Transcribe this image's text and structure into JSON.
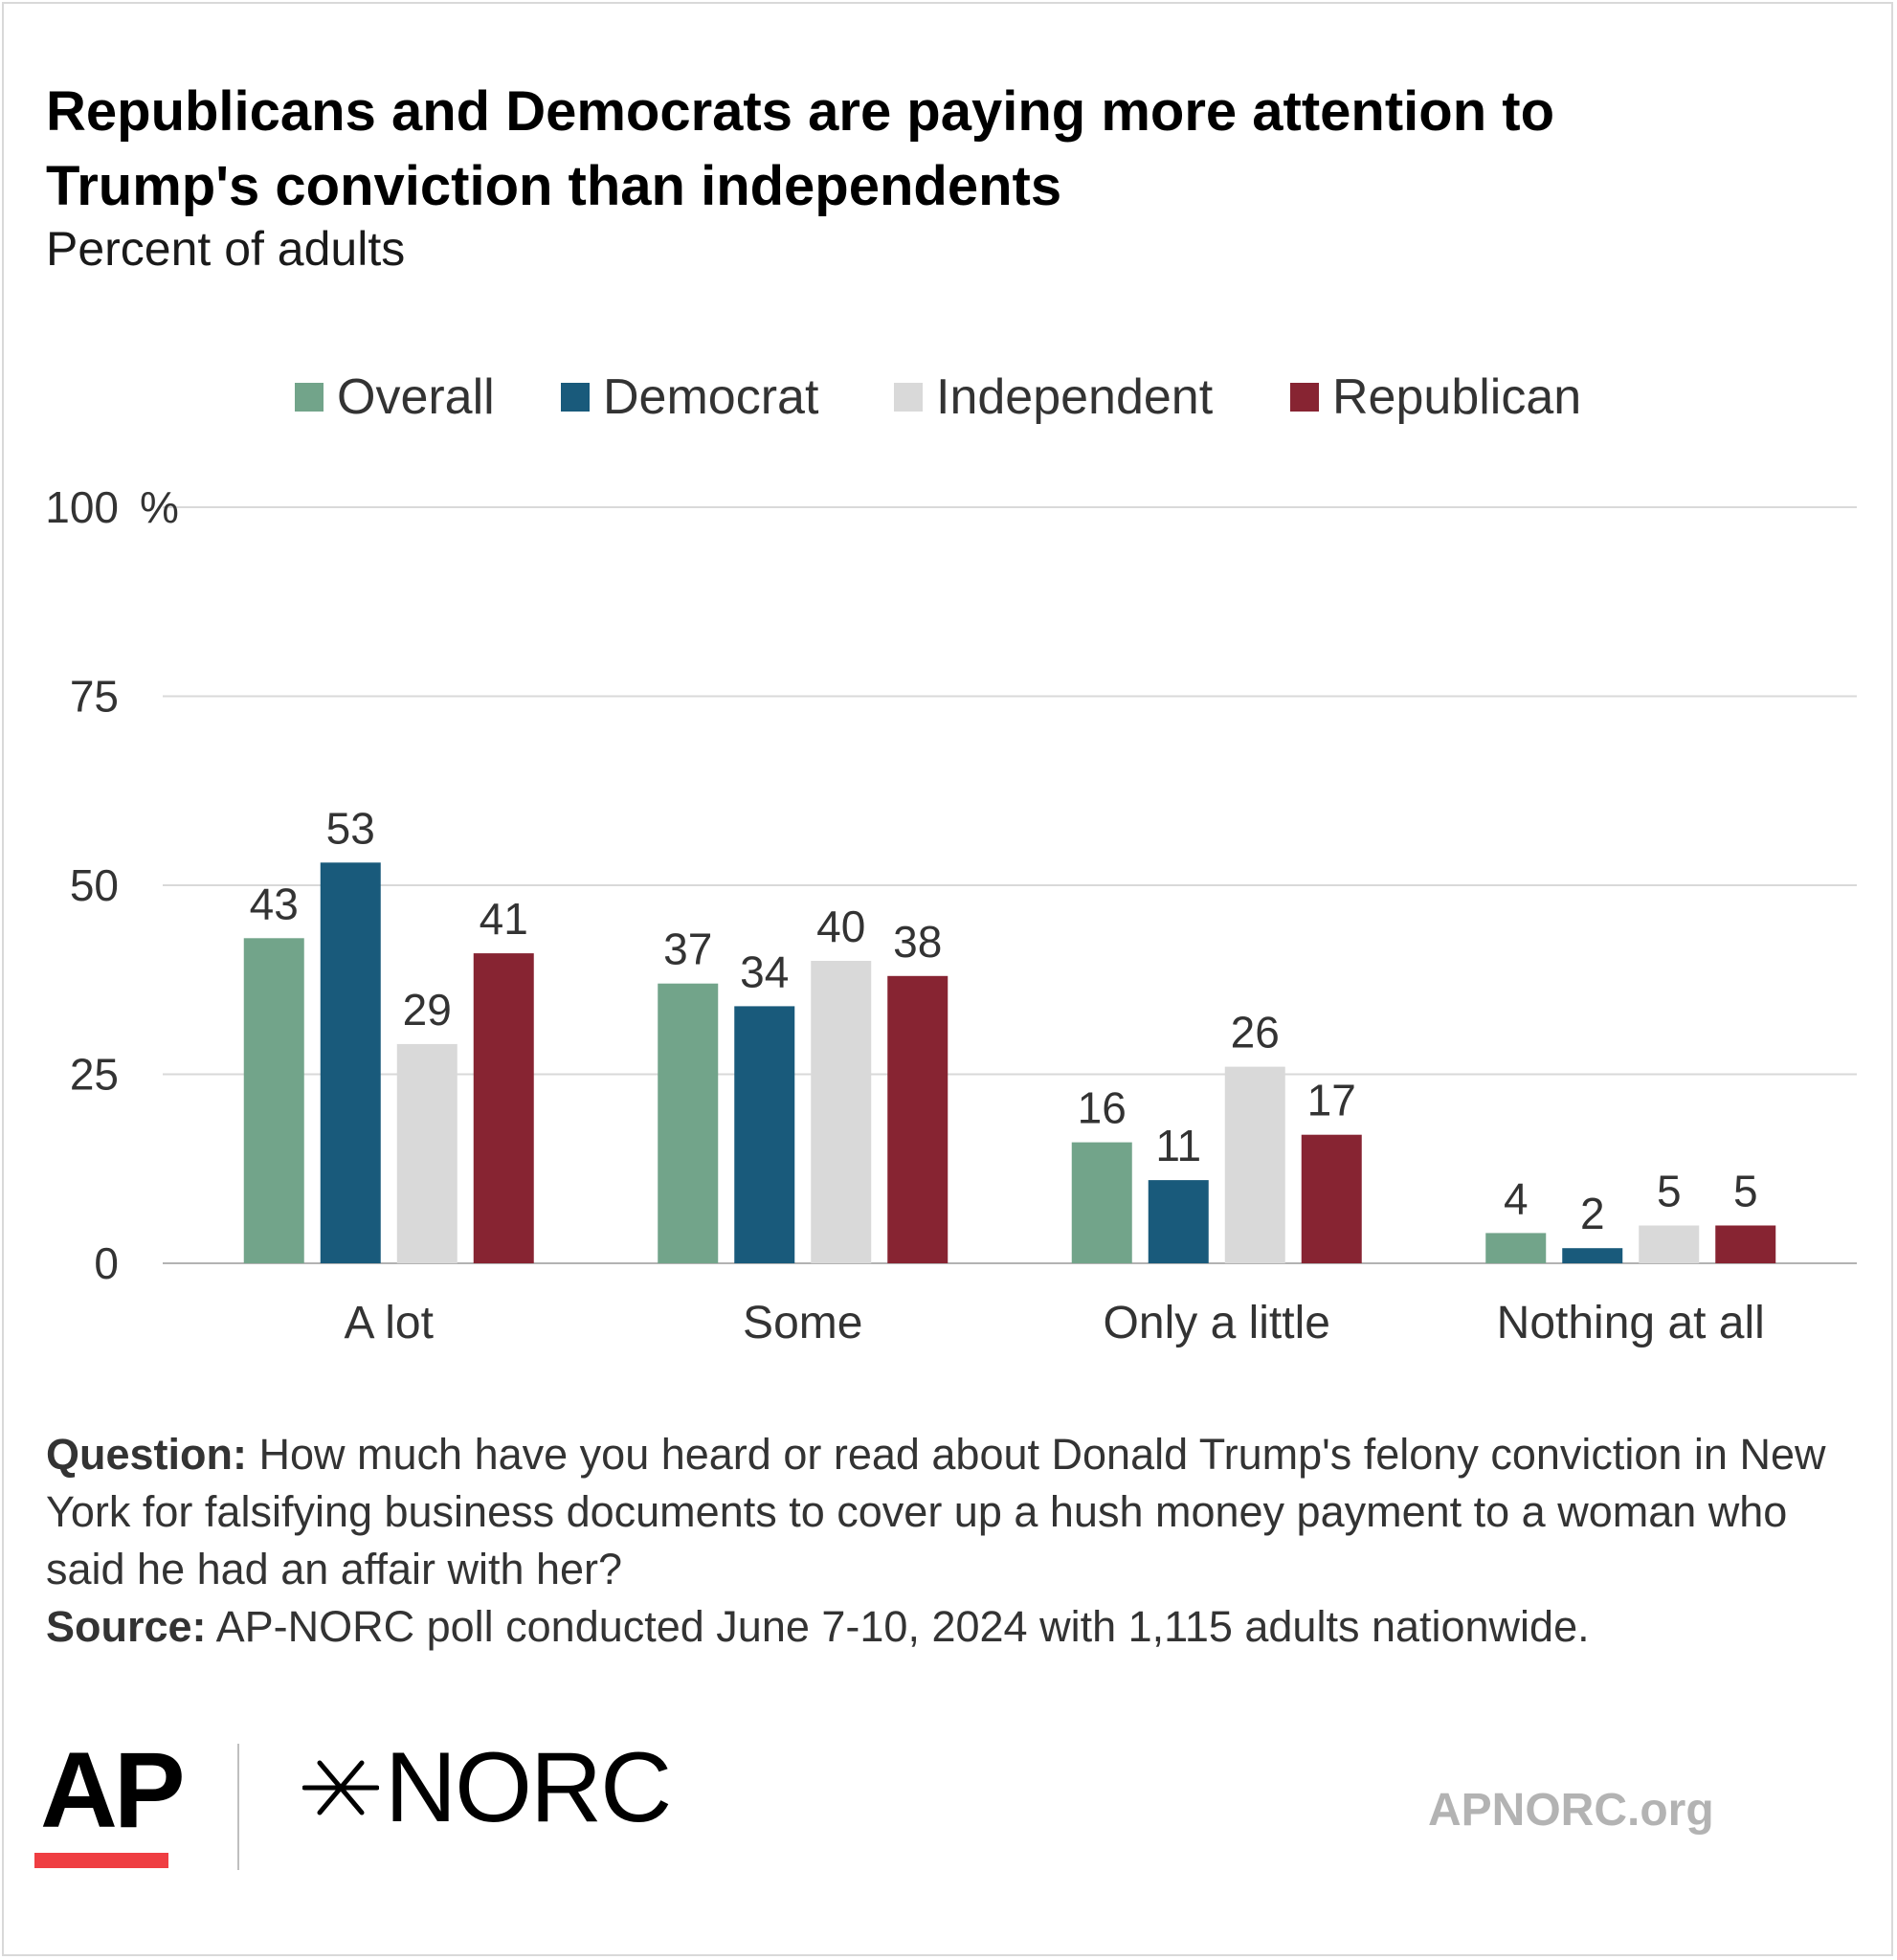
{
  "title": "Republicans and Democrats are paying more attention to Trump's conviction than independents",
  "subtitle": "Percent of adults",
  "colors": {
    "overall": "#72a48a",
    "democrat": "#195a7b",
    "independent": "#d9d9d9",
    "republican": "#872432",
    "gridline": "#d9d9d9",
    "ap_red": "#ef3e42"
  },
  "legend": [
    {
      "label": "Overall",
      "color": "#72a48a"
    },
    {
      "label": "Democrat",
      "color": "#195a7b"
    },
    {
      "label": "Independent",
      "color": "#d9d9d9"
    },
    {
      "label": "Republican",
      "color": "#872432"
    }
  ],
  "chart_data": {
    "type": "bar",
    "categories": [
      "A lot",
      "Some",
      "Only a little",
      "Nothing at all"
    ],
    "series": [
      {
        "name": "Overall",
        "values": [
          43,
          37,
          16,
          4
        ],
        "color": "#72a48a"
      },
      {
        "name": "Democrat",
        "values": [
          53,
          34,
          11,
          2
        ],
        "color": "#195a7b"
      },
      {
        "name": "Independent",
        "values": [
          29,
          40,
          26,
          5
        ],
        "color": "#d9d9d9"
      },
      {
        "name": "Republican",
        "values": [
          41,
          38,
          17,
          5
        ],
        "color": "#872432"
      }
    ],
    "title": "Republicans and Democrats are paying more attention to Trump's conviction than independents",
    "ylabel": "",
    "yunit": "%",
    "yticks": [
      0,
      25,
      50,
      75,
      100
    ],
    "ylim": [
      0,
      100
    ],
    "grid": true,
    "legend_position": "top"
  },
  "notes": {
    "question_label": "Question:",
    "question_text": "How much have you heard or read about Donald Trump's felony conviction in New York for falsifying business documents to cover up a hush money payment to a woman who said he had an affair with her?",
    "source_label": "Source:",
    "source_text": "AP-NORC poll conducted June 7-10, 2024 with 1,115 adults nationwide."
  },
  "footer": {
    "ap_logo": "AP",
    "norc_logo": "NORC",
    "site": "APNORC.org"
  }
}
